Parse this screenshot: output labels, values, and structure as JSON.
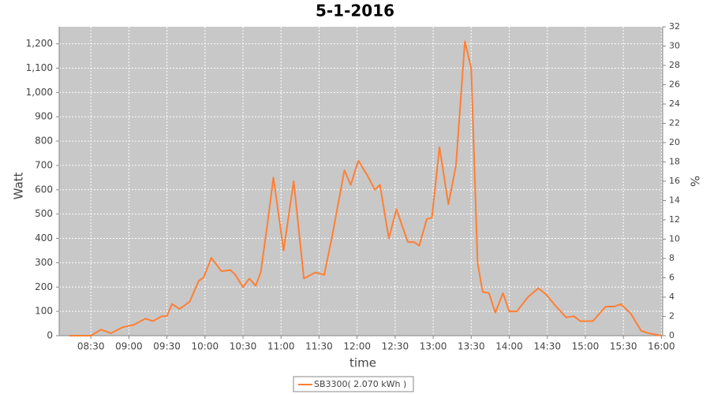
{
  "chart_data": {
    "type": "line",
    "title": "5-1-2016",
    "x_label": "time",
    "y_label": "Watt",
    "y2_label": "%",
    "x": [
      "08:13",
      "08:30",
      "08:38",
      "08:46",
      "08:55",
      "09:04",
      "09:13",
      "09:19",
      "09:26",
      "09:30",
      "09:34",
      "09:40",
      "09:48",
      "09:55",
      "09:59",
      "10:05",
      "10:13",
      "10:20",
      "10:24",
      "10:30",
      "10:35",
      "10:40",
      "10:44",
      "10:49",
      "10:54",
      "11:02",
      "11:10",
      "11:18",
      "11:27",
      "11:34",
      "11:40",
      "11:50",
      "11:55",
      "12:01",
      "12:08",
      "12:14",
      "12:18",
      "12:25",
      "12:31",
      "12:40",
      "12:45",
      "12:49",
      "12:55",
      "12:59",
      "13:05",
      "13:12",
      "13:18",
      "13:25",
      "13:30",
      "13:35",
      "13:39",
      "13:44",
      "13:49",
      "13:55",
      "14:00",
      "14:06",
      "14:15",
      "14:23",
      "14:29",
      "14:37",
      "14:45",
      "14:51",
      "14:56",
      "15:06",
      "15:16",
      "15:23",
      "15:28",
      "15:36",
      "15:44",
      "15:50",
      "15:55",
      "16:00"
    ],
    "series": [
      {
        "name": "SB3300( 2.070 kWh )",
        "color": "#ff7f33",
        "values": [
          0,
          0,
          25,
          10,
          35,
          45,
          70,
          60,
          80,
          80,
          130,
          110,
          140,
          225,
          240,
          320,
          265,
          270,
          250,
          200,
          235,
          205,
          260,
          450,
          650,
          350,
          635,
          235,
          260,
          250,
          400,
          680,
          620,
          720,
          660,
          600,
          620,
          400,
          520,
          385,
          385,
          370,
          480,
          485,
          775,
          540,
          700,
          1210,
          1100,
          300,
          180,
          175,
          95,
          175,
          100,
          100,
          160,
          195,
          170,
          120,
          75,
          80,
          60,
          60,
          120,
          120,
          130,
          90,
          20,
          10,
          5,
          0
        ]
      }
    ],
    "xlim": [
      "08:05",
      "16:01"
    ],
    "xticks": [
      "08:30",
      "09:00",
      "09:30",
      "10:00",
      "10:30",
      "11:00",
      "11:30",
      "12:00",
      "12:30",
      "13:00",
      "13:30",
      "14:00",
      "14:30",
      "15:00",
      "15:30",
      "16:00"
    ],
    "ylim": [
      0,
      1270
    ],
    "yticks": [
      0,
      100,
      200,
      300,
      400,
      500,
      600,
      700,
      800,
      900,
      {
        "value": 1000,
        "label": "1,000"
      },
      {
        "value": 1100,
        "label": "1,100"
      },
      {
        "value": 1200,
        "label": "1,200"
      }
    ],
    "y2lim": [
      0,
      32
    ],
    "y2ticks": [
      0,
      2,
      4,
      6,
      8,
      10,
      12,
      14,
      16,
      18,
      20,
      22,
      24,
      26,
      28,
      30,
      32
    ],
    "grid": true,
    "legend": "bottom"
  }
}
